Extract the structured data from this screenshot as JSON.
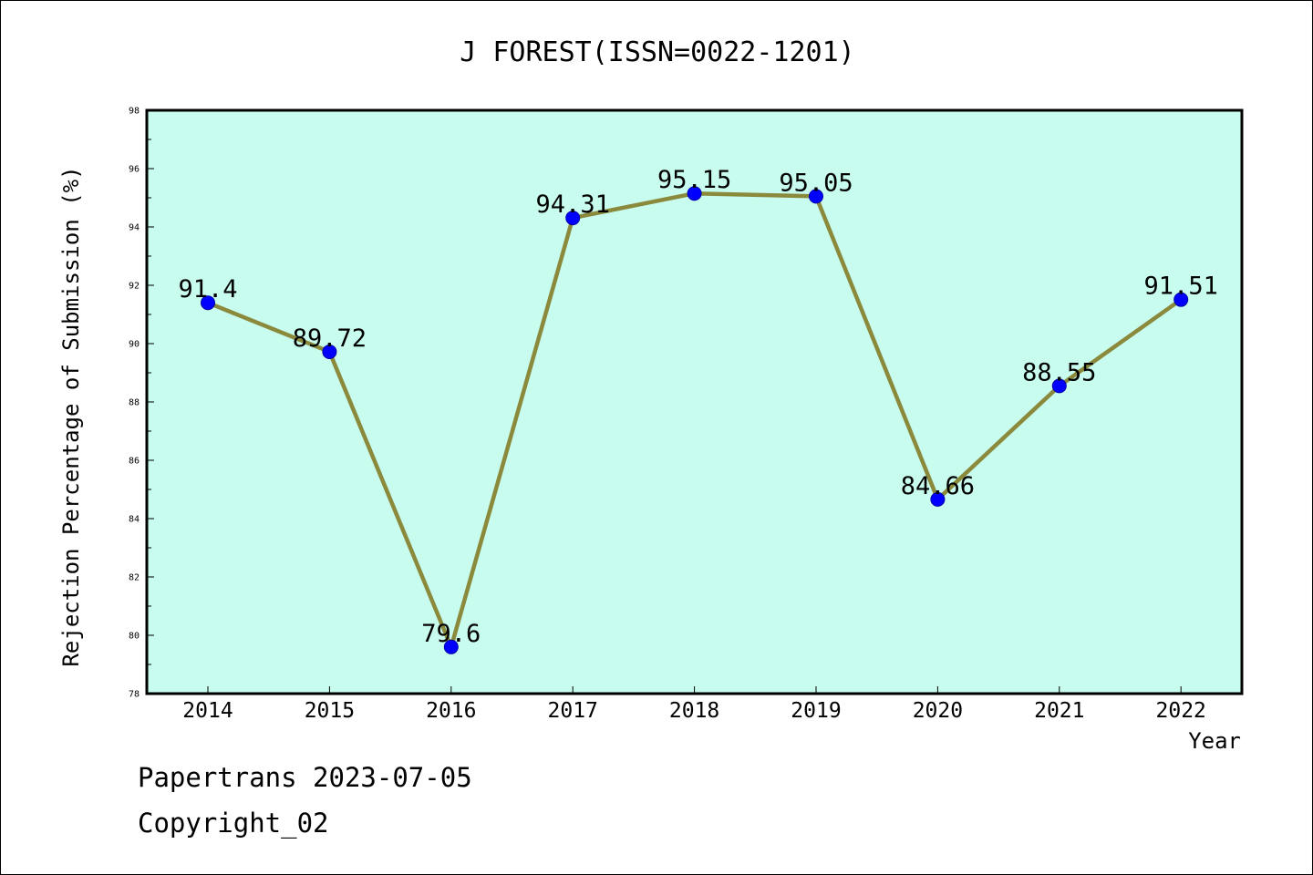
{
  "chart_data": {
    "type": "line",
    "title": "J FOREST(ISSN=0022-1201)",
    "xlabel": "Year",
    "ylabel": "Rejection Percentage of Submission (%)",
    "categories": [
      "2014",
      "2015",
      "2016",
      "2017",
      "2018",
      "2019",
      "2020",
      "2021",
      "2022"
    ],
    "series": [
      {
        "values": [
          91.4,
          89.72,
          79.6,
          94.31,
          95.15,
          95.05,
          84.66,
          88.55,
          91.51
        ],
        "labels": [
          "91.4",
          "89.72",
          "79.6",
          "94.31",
          "95.15",
          "95.05",
          "84.66",
          "88.55",
          "91.51"
        ]
      }
    ],
    "ylim": [
      78,
      98
    ],
    "yticks": [
      "78",
      "80",
      "82",
      "84",
      "86",
      "88",
      "90",
      "92",
      "94",
      "96",
      "98"
    ],
    "grid": false,
    "legend": "none",
    "colors": {
      "plot_background": "#c8fcee",
      "line": "#8b8a3c",
      "marker": "#0000ff",
      "marker_edge": "#0000aa"
    }
  },
  "footer": {
    "line1": "Papertrans 2023-07-05",
    "line2": "Copyright_02"
  }
}
